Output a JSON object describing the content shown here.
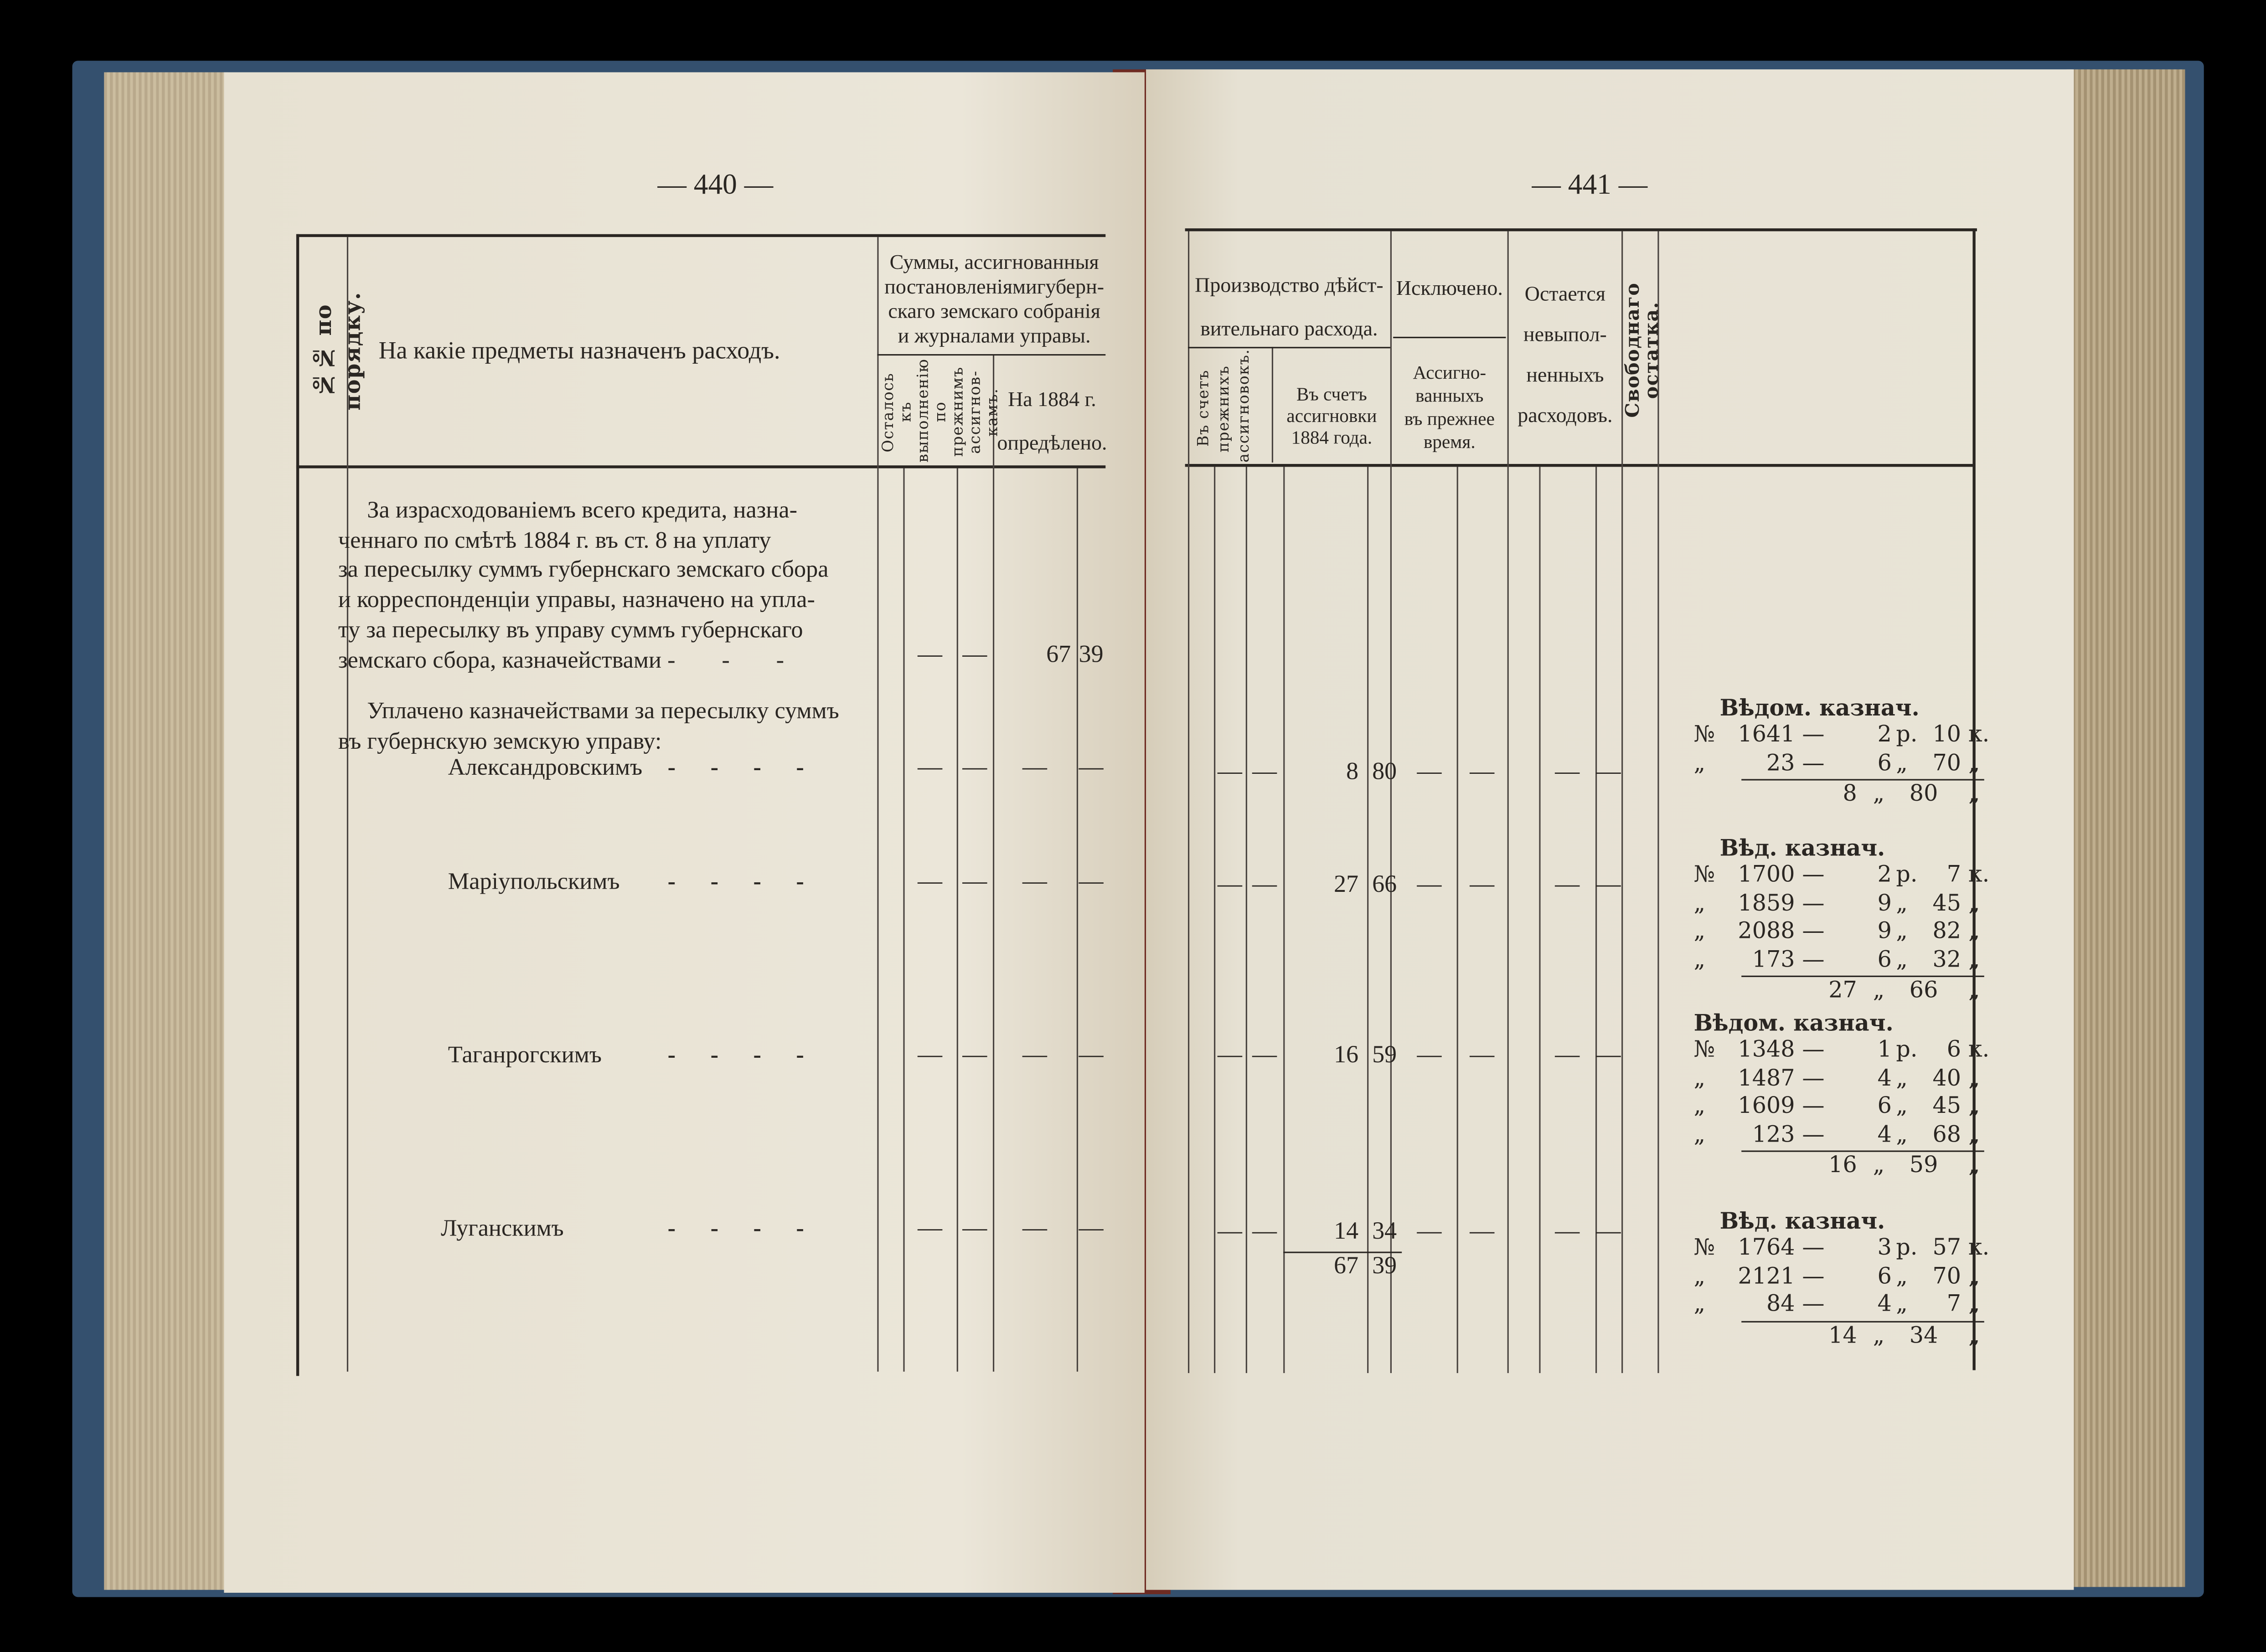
{
  "left_page": {
    "page_number": "— 440 —",
    "header": {
      "number_col": "№№ по порядку.",
      "subject_col": "На какіе предметы назначенъ расходъ.",
      "sums_col": [
        "Суммы, ассигнованныя",
        "постановленіямигуберн-",
        "скаго земскаго собранія",
        "и журналами управы."
      ],
      "remaining_col": [
        "Осталось къ",
        "выполненію",
        "по прежнимъ",
        "ассигнов-",
        "камъ."
      ],
      "year_col": [
        "На 1884 г.",
        "опредѣлено."
      ]
    },
    "paragraph1": [
      "За израсходованіемъ всего кредита, назна-",
      "ченнаго по смѣтѣ 1884 г. въ ст. 8 на уплату",
      "за пересылку суммъ губернскаго земскаго сбора",
      "и корреспонденціи управы, назначено на упла-",
      "ту за пересылку въ управу суммъ губернскаго",
      "земскаго сбора, казначействами"
    ],
    "paragraph1_values": [
      "—",
      "—",
      "67",
      "39"
    ],
    "paragraph2": [
      "Уплачено казначействами за пересылку суммъ",
      "въ губернскую земскую управу:"
    ],
    "items": [
      {
        "label": "Александровскимъ",
        "leader": "-  -  -  -",
        "values": [
          "—",
          "—",
          "—",
          "—"
        ]
      },
      {
        "label": "Маріупольскимъ",
        "leader": "-  -  -  -",
        "values": [
          "—",
          "—",
          "—",
          "—"
        ]
      },
      {
        "label": "Таганрогскимъ",
        "leader": "-  -  -  -",
        "values": [
          "—",
          "—",
          "—",
          "—"
        ]
      },
      {
        "label": "Луганскимъ",
        "leader": "-  -  -  -",
        "values": [
          "—",
          "—",
          "—",
          "—"
        ]
      }
    ]
  },
  "right_page": {
    "page_number": "— 441 —",
    "header": {
      "actual_col": [
        "Производство дѣйст-",
        "вительнаго расхода."
      ],
      "prior_sub": [
        "Въ счетъ",
        "прежнихъ",
        "ассигновокъ."
      ],
      "current_sub": [
        "Въ счетъ",
        "ассигновки",
        "1884 года."
      ],
      "excluded_col": "Исключено.",
      "excluded_sub": [
        "Ассигно-",
        "ванныхъ",
        "въ прежнее",
        "время."
      ],
      "remaining_col": [
        "Остается",
        "невыпол-",
        "ненныхъ",
        "расходовъ."
      ],
      "free_col": "Свободнаго остатка."
    },
    "rows": [
      {
        "values": [
          "—",
          "—",
          "8",
          "80",
          "—",
          "—",
          "—",
          "—"
        ]
      },
      {
        "values": [
          "—",
          "—",
          "27",
          "66",
          "—",
          "—",
          "—",
          "—"
        ]
      },
      {
        "values": [
          "—",
          "—",
          "16",
          "59",
          "—",
          "—",
          "—",
          "—"
        ]
      },
      {
        "values": [
          "—",
          "—",
          "14",
          "34",
          "—",
          "—",
          "—",
          "—"
        ]
      }
    ],
    "total": [
      "67",
      "39"
    ],
    "notes": [
      {
        "heading": "Вѣдом. казнач.",
        "rows": [
          [
            "№",
            "1641",
            "—",
            "2",
            "р.",
            "10",
            "к."
          ],
          [
            "„",
            "23",
            "—",
            "6",
            "„",
            "70",
            "„"
          ]
        ],
        "total": [
          "8",
          "„",
          "80",
          "„"
        ]
      },
      {
        "heading": "Вѣд. казнач.",
        "rows": [
          [
            "№",
            "1700",
            "—",
            "2",
            "р.",
            "7",
            "к."
          ],
          [
            "„",
            "1859",
            "—",
            "9",
            "„",
            "45",
            "„"
          ],
          [
            "„",
            "2088",
            "—",
            "9",
            "„",
            "82",
            "„"
          ],
          [
            "„",
            "173",
            "—",
            "6",
            "„",
            "32",
            "„"
          ]
        ],
        "total": [
          "27",
          "„",
          "66",
          "„"
        ]
      },
      {
        "heading": "Вѣдом. казнач.",
        "rows": [
          [
            "№",
            "1348",
            "—",
            "1",
            "р.",
            "6",
            "к."
          ],
          [
            "„",
            "1487",
            "—",
            "4",
            "„",
            "40",
            "„"
          ],
          [
            "„",
            "1609",
            "—",
            "6",
            "„",
            "45",
            "„"
          ],
          [
            "„",
            "123",
            "—",
            "4",
            "„",
            "68",
            "„"
          ]
        ],
        "total": [
          "16",
          "„",
          "59",
          "„"
        ]
      },
      {
        "heading": "Вѣд. казнач.",
        "rows": [
          [
            "№",
            "1764",
            "—",
            "3",
            "р.",
            "57",
            "к."
          ],
          [
            "„",
            "2121",
            "—",
            "6",
            "„",
            "70",
            "„"
          ],
          [
            "„",
            "84",
            "—",
            "4",
            "„",
            "7",
            "„"
          ]
        ],
        "total": [
          "14",
          "„",
          "34",
          "„"
        ]
      }
    ]
  },
  "colors": {
    "page": "#e9e4d6",
    "cover": "#34506e",
    "ink": "#2a2622",
    "page_edge": "#c2b394"
  }
}
